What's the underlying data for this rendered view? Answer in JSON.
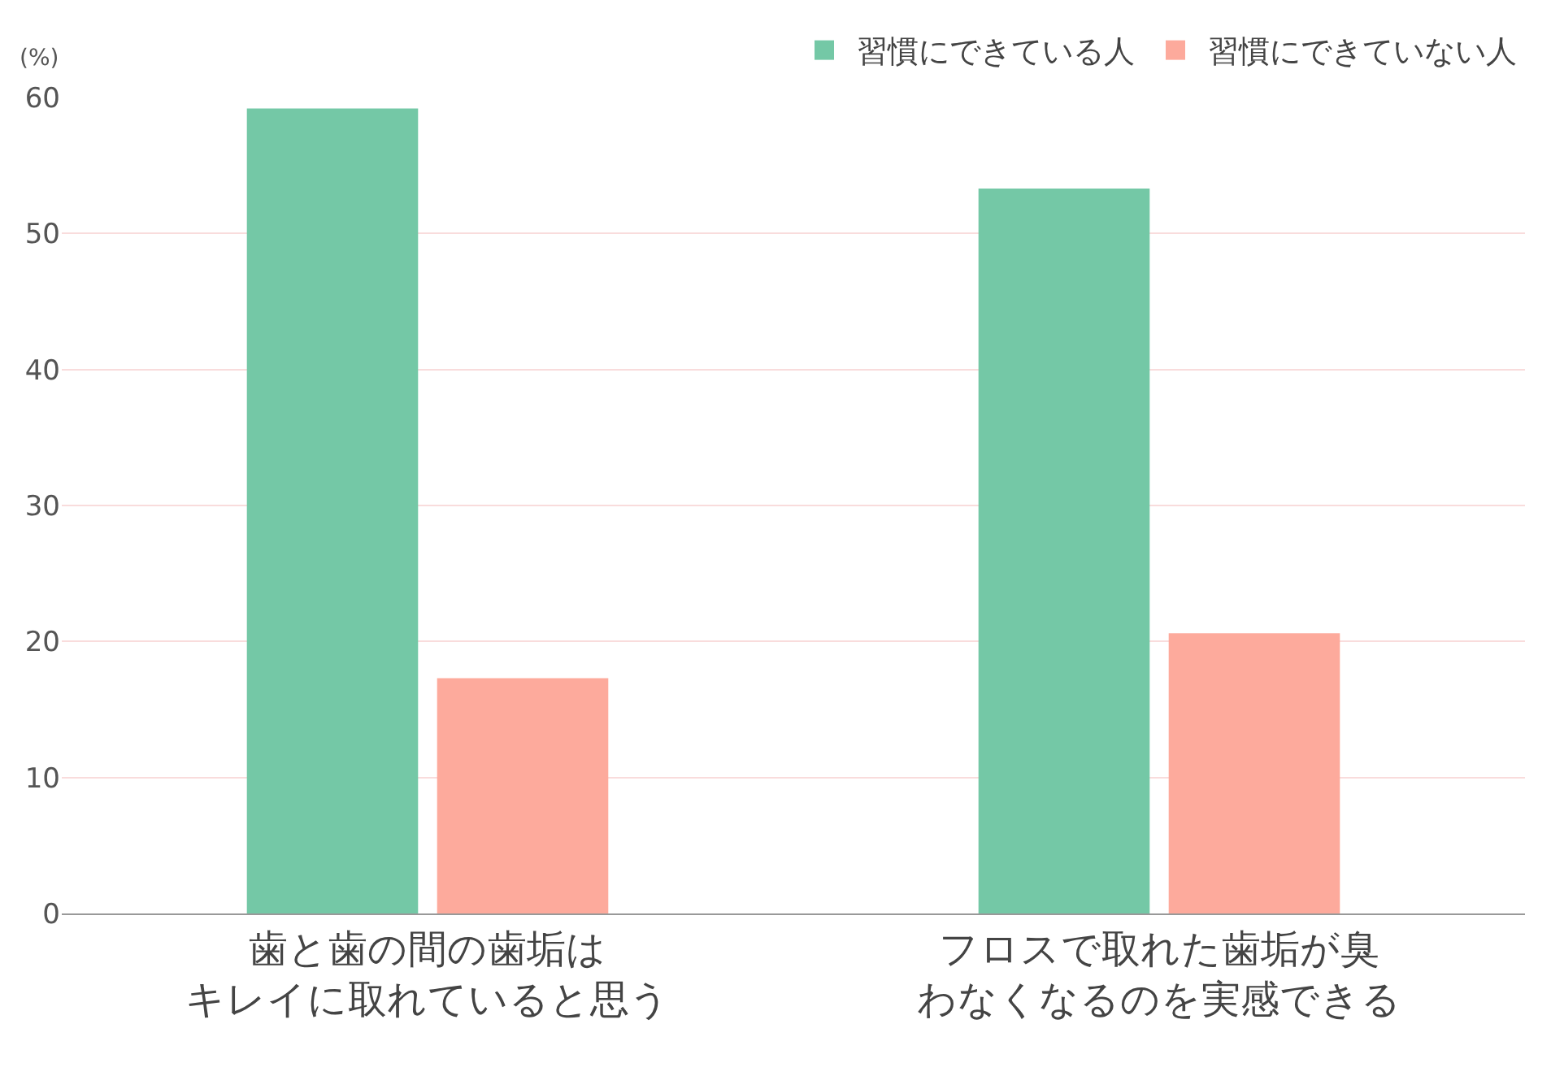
{
  "chart_data": {
    "type": "bar",
    "ylabel": "(%)",
    "categories": [
      "歯と歯の間の歯垢はキレイに取れていると思う",
      "フロスで取れた歯垢が臭わなくなるのを実感できる"
    ],
    "series": [
      {
        "name": "習慣にできている人",
        "color": "#74c8a6",
        "values": [
          59.2,
          53.3
        ]
      },
      {
        "name": "習慣にできていない人",
        "color": "#fdaa9c",
        "values": [
          17.3,
          20.6
        ]
      }
    ],
    "ylim": [
      0,
      60
    ],
    "yticks": [
      0,
      10,
      20,
      30,
      40,
      50,
      60
    ],
    "grid": "y",
    "legend": "top right"
  }
}
